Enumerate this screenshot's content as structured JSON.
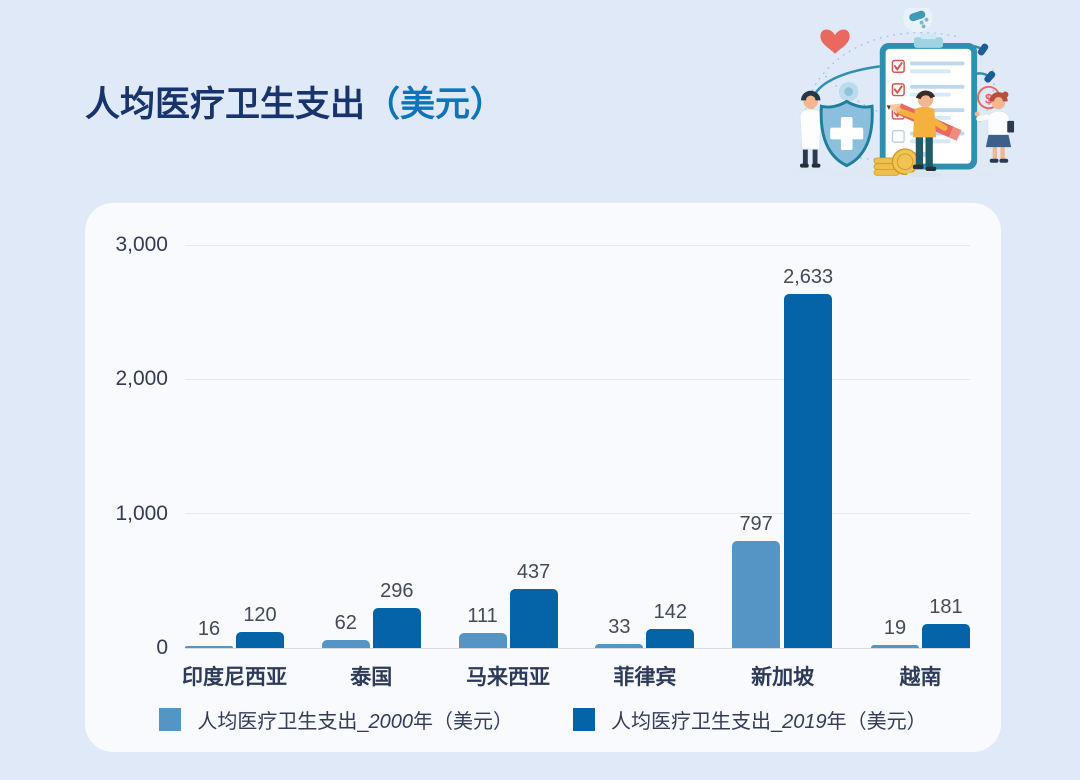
{
  "page": {
    "background_color": "#dfe9f8",
    "card_background": "#f8fafd"
  },
  "header": {
    "title": {
      "main": "人均医疗卫生支出",
      "paren": "（美元）"
    },
    "illustration": {
      "name": "healthcare-checklist-illustration",
      "elements": [
        "clipboard-checklist",
        "doctor-with-shield-figure",
        "man-with-pencil-figure",
        "female-doctor-figure",
        "heart-icon",
        "pills-icon",
        "dollar-coin-icon",
        "stethoscope-icon",
        "gold-coins-icon"
      ]
    }
  },
  "chart_data": {
    "type": "bar",
    "title": "人均医疗卫生支出（美元）",
    "categories": [
      "印度尼西亚",
      "泰国",
      "马来西亚",
      "菲律宾",
      "新加坡",
      "越南"
    ],
    "series": [
      {
        "name": "人均医疗卫生支出_2000年（美元）",
        "color": "#5595c6",
        "values": [
          16,
          62,
          111,
          33,
          797,
          19
        ],
        "value_labels": [
          "16",
          "62",
          "111",
          "33",
          "797",
          "19"
        ]
      },
      {
        "name": "人均医疗卫生支出_2019年（美元）",
        "color": "#0564a8",
        "values": [
          120,
          296,
          437,
          142,
          2633,
          181
        ],
        "value_labels": [
          "120",
          "296",
          "437",
          "142",
          "2,633",
          "181"
        ]
      }
    ],
    "ylim": [
      0,
      3000
    ],
    "yticks": [
      "0",
      "1,000",
      "2,000",
      "3,000"
    ],
    "grid": true,
    "legend_position": "bottom"
  },
  "legend": {
    "items": [
      {
        "prefix": "人均医疗卫生支出_",
        "year": "2000",
        "suffix": "年（美元）"
      },
      {
        "prefix": "人均医疗卫生支出_",
        "year": "2019",
        "suffix": "年（美元）"
      }
    ]
  }
}
